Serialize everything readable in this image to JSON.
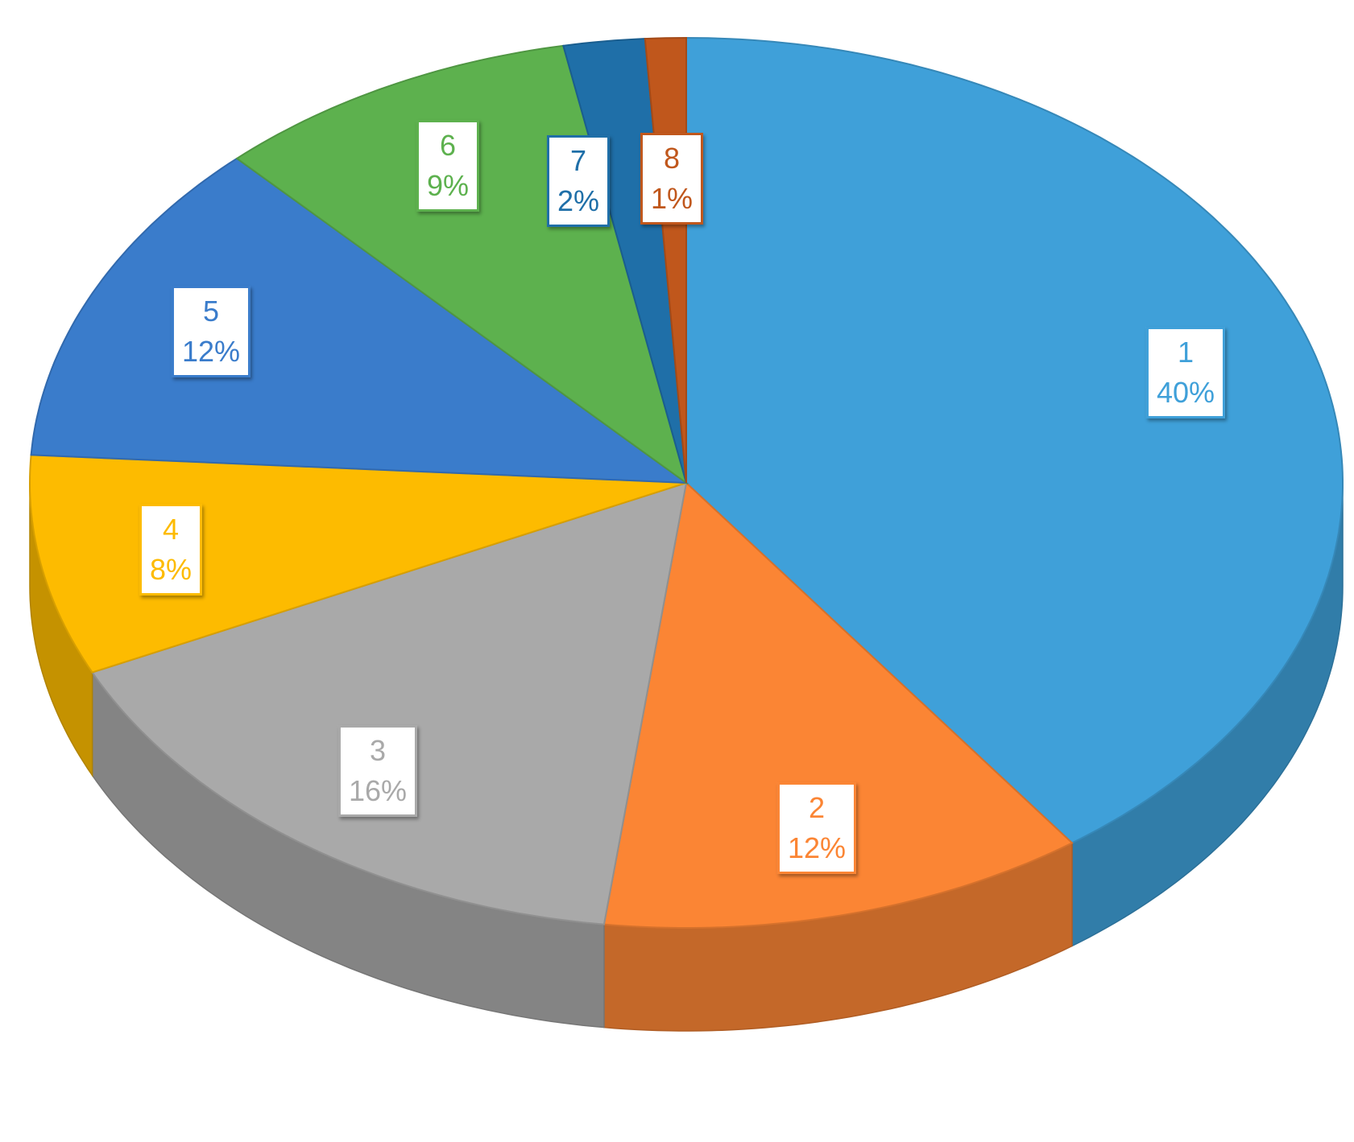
{
  "chart_data": {
    "type": "pie",
    "style": "3d",
    "title": "",
    "slices": [
      {
        "label": "1",
        "value": 40,
        "percent_label": "40%",
        "color": "#3fa0d9"
      },
      {
        "label": "2",
        "value": 12,
        "percent_label": "12%",
        "color": "#fb8534"
      },
      {
        "label": "3",
        "value": 16,
        "percent_label": "16%",
        "color": "#a9a9a9"
      },
      {
        "label": "4",
        "value": 8,
        "percent_label": "8%",
        "color": "#fdbb00"
      },
      {
        "label": "5",
        "value": 12,
        "percent_label": "12%",
        "color": "#3a7ccb"
      },
      {
        "label": "6",
        "value": 9,
        "percent_label": "9%",
        "color": "#5db14e"
      },
      {
        "label": "7",
        "value": 2,
        "percent_label": "2%",
        "color": "#1f6fa8"
      },
      {
        "label": "8",
        "value": 1,
        "percent_label": "1%",
        "color": "#c0571c"
      }
    ]
  }
}
